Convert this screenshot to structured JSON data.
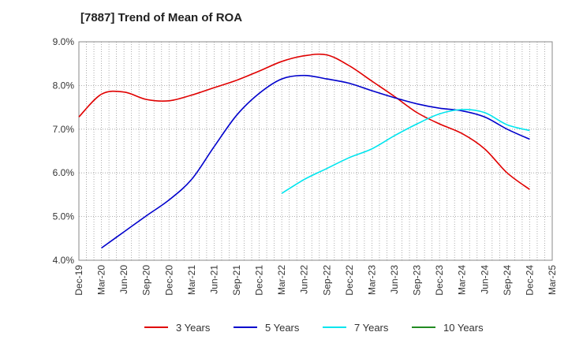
{
  "chart_data": {
    "type": "line",
    "title": "[7887]  Trend of Mean of ROA",
    "xlabel": "",
    "ylabel": "",
    "ylim": [
      4.0,
      9.0
    ],
    "yticks": [
      "4.0%",
      "5.0%",
      "6.0%",
      "7.0%",
      "8.0%",
      "9.0%"
    ],
    "categories": [
      "Dec-19",
      "Mar-20",
      "Jun-20",
      "Sep-20",
      "Dec-20",
      "Mar-21",
      "Jun-21",
      "Sep-21",
      "Dec-21",
      "Mar-22",
      "Jun-22",
      "Sep-22",
      "Dec-22",
      "Mar-23",
      "Jun-23",
      "Sep-23",
      "Dec-23",
      "Mar-24",
      "Jun-24",
      "Sep-24",
      "Dec-24",
      "Mar-25"
    ],
    "grid": true,
    "legend_position": "bottom",
    "series": [
      {
        "name": "3 Years",
        "color": "#e00000",
        "values": [
          7.28,
          7.8,
          7.85,
          7.68,
          7.65,
          7.78,
          7.95,
          8.12,
          8.33,
          8.55,
          8.68,
          8.7,
          8.45,
          8.1,
          7.75,
          7.38,
          7.12,
          6.9,
          6.55,
          6.0,
          5.62,
          null
        ]
      },
      {
        "name": "5 Years",
        "color": "#0000cc",
        "values": [
          null,
          4.28,
          4.65,
          5.02,
          5.38,
          5.85,
          6.6,
          7.32,
          7.82,
          8.15,
          8.23,
          8.15,
          8.05,
          7.88,
          7.72,
          7.58,
          7.48,
          7.42,
          7.28,
          7.0,
          6.77,
          null
        ]
      },
      {
        "name": "7 Years",
        "color": "#00e5ee",
        "values": [
          null,
          null,
          null,
          null,
          null,
          null,
          null,
          null,
          null,
          5.53,
          5.85,
          6.1,
          6.35,
          6.55,
          6.85,
          7.12,
          7.35,
          7.45,
          7.38,
          7.1,
          6.97,
          null
        ]
      },
      {
        "name": "10 Years",
        "color": "#228B22",
        "values": [
          null,
          null,
          null,
          null,
          null,
          null,
          null,
          null,
          null,
          null,
          null,
          null,
          null,
          null,
          null,
          null,
          null,
          null,
          null,
          null,
          null,
          null
        ]
      }
    ]
  }
}
